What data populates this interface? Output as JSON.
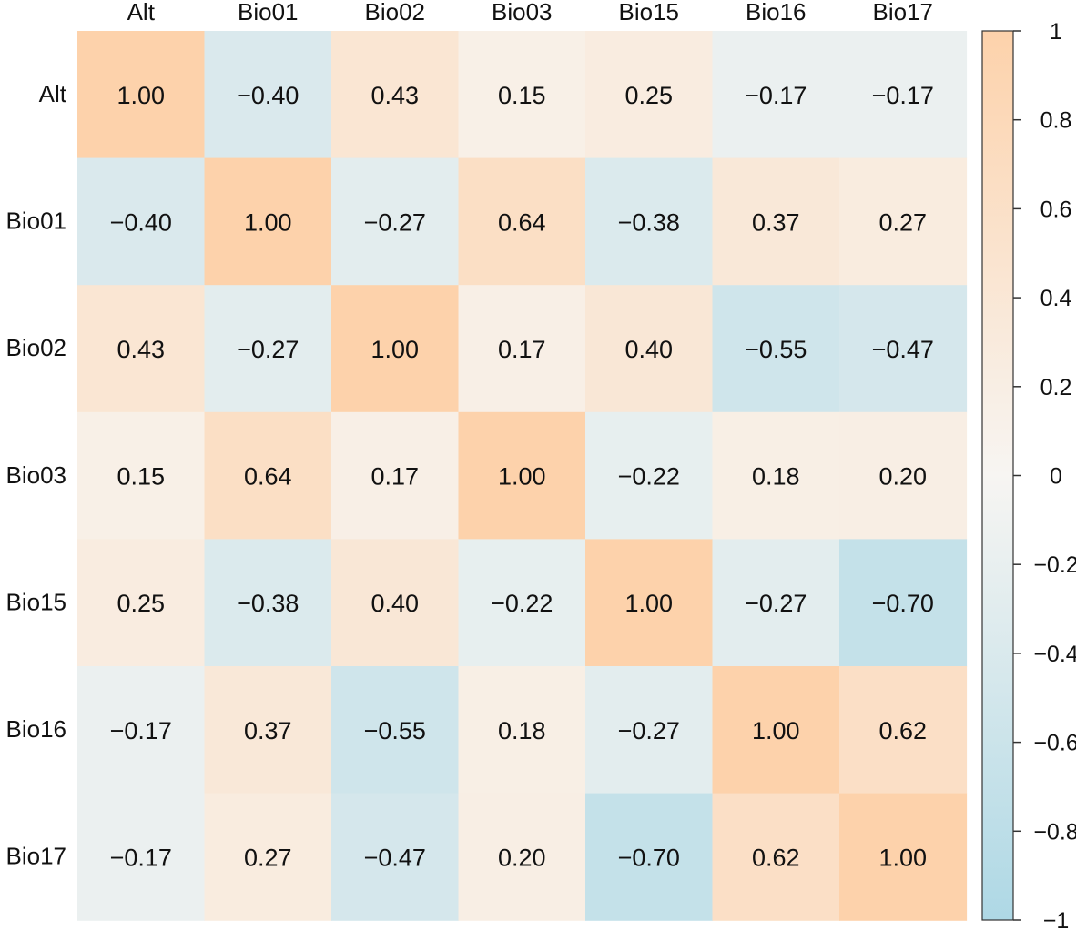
{
  "chart_data": {
    "type": "heatmap",
    "title": "",
    "xlabel": "",
    "ylabel": "",
    "columns": [
      "Alt",
      "Bio01",
      "Bio02",
      "Bio03",
      "Bio15",
      "Bio16",
      "Bio17"
    ],
    "rows": [
      "Alt",
      "Bio01",
      "Bio02",
      "Bio03",
      "Bio15",
      "Bio16",
      "Bio17"
    ],
    "values": [
      [
        1.0,
        -0.4,
        0.43,
        0.15,
        0.25,
        -0.17,
        -0.17
      ],
      [
        -0.4,
        1.0,
        -0.27,
        0.64,
        -0.38,
        0.37,
        0.27
      ],
      [
        0.43,
        -0.27,
        1.0,
        0.17,
        0.4,
        -0.55,
        -0.47
      ],
      [
        0.15,
        0.64,
        0.17,
        1.0,
        -0.22,
        0.18,
        0.2
      ],
      [
        0.25,
        -0.38,
        0.4,
        -0.22,
        1.0,
        -0.27,
        -0.7
      ],
      [
        -0.17,
        0.37,
        -0.55,
        0.18,
        -0.27,
        1.0,
        0.62
      ],
      [
        -0.17,
        0.27,
        -0.47,
        0.2,
        -0.7,
        0.62,
        1.0
      ]
    ],
    "cell_labels": [
      [
        "1.00",
        "−0.40",
        "0.43",
        "0.15",
        "0.25",
        "−0.17",
        "−0.17"
      ],
      [
        "−0.40",
        "1.00",
        "−0.27",
        "0.64",
        "−0.38",
        "0.37",
        "0.27"
      ],
      [
        "0.43",
        "−0.27",
        "1.00",
        "0.17",
        "0.40",
        "−0.55",
        "−0.47"
      ],
      [
        "0.15",
        "0.64",
        "0.17",
        "1.00",
        "−0.22",
        "0.18",
        "0.20"
      ],
      [
        "0.25",
        "−0.38",
        "0.40",
        "−0.22",
        "1.00",
        "−0.27",
        "−0.70"
      ],
      [
        "−0.17",
        "0.37",
        "−0.55",
        "0.18",
        "−0.27",
        "1.00",
        "0.62"
      ],
      [
        "−0.17",
        "0.27",
        "−0.47",
        "0.20",
        "−0.70",
        "0.62",
        "1.00"
      ]
    ],
    "colorbar": {
      "range": [
        -1,
        1
      ],
      "ticks": [
        1,
        0.8,
        0.6,
        0.4,
        0.2,
        0,
        -0.2,
        -0.4,
        -0.6,
        -0.8,
        -1
      ],
      "tick_labels": [
        "1",
        "0.8",
        "0.6",
        "0.4",
        "0.2",
        "0",
        "−0.2",
        "−0.4",
        "−0.6",
        "−0.8",
        "−1"
      ],
      "position": "right"
    },
    "colors": {
      "positive": "#fdd2ab",
      "neutral": "#f7f5f2",
      "negative": "#aed8e5"
    },
    "grid": false
  }
}
